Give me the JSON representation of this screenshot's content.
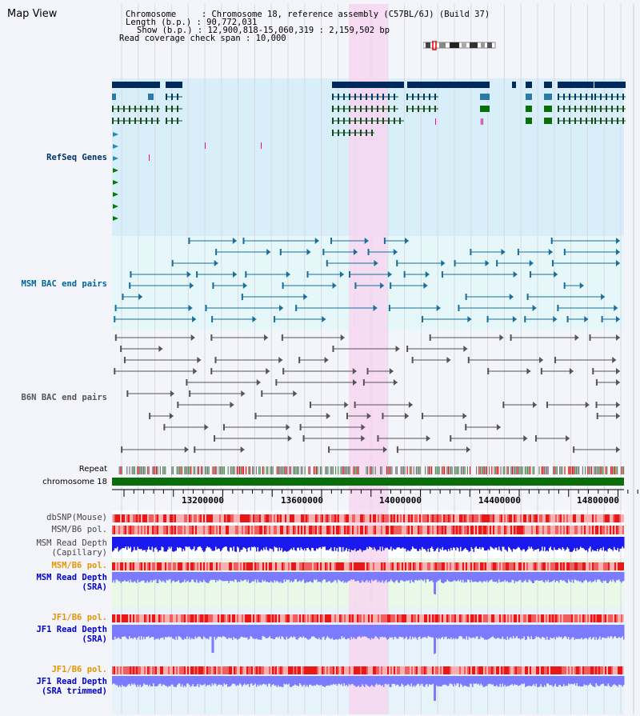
{
  "header": {
    "title": "Map View",
    "info_lines": [
      "Chromosome     : Chromosome 18, reference assembly (C57BL/6J) (Build 37)",
      "Length (b.p.) : 90,772,031",
      "Show (b.p.) : 12,900,818-15,060,319 : 2,159,502 bp",
      "Read coverage check span : 10,000"
    ]
  },
  "tracks": {
    "refseq": {
      "label": "RefSeq Genes",
      "color": "#003366"
    },
    "msm_bac": {
      "label": "MSM BAC end pairs",
      "color": "#006699"
    },
    "b6n_bac": {
      "label": "B6N BAC end pairs",
      "color": "#555555"
    },
    "repeat": {
      "label": "Repeat"
    },
    "chromosome": {
      "label": "chromosome 18"
    },
    "dbsnp": {
      "label": "dbSNP(Mouse)"
    },
    "msm_b6_pol": {
      "label": "MSM/B6 pol."
    },
    "msm_read_depth_cap": {
      "label1": "MSM Read Depth",
      "label2": "(Capillary)"
    },
    "msm_b6_pol_sra": {
      "label": "MSM/B6 pol.",
      "color": "#e69500"
    },
    "msm_read_depth_sra": {
      "label1": "MSM Read Depth",
      "label2": "(SRA)",
      "color": "#0000cc"
    },
    "jf1_b6_pol_1": {
      "label": "JF1/B6 pol.",
      "color": "#e69500"
    },
    "jf1_read_depth_sra": {
      "label1": "JF1 Read Depth",
      "label2": "(SRA)",
      "color": "#0000cc"
    },
    "jf1_b6_pol_2": {
      "label": "JF1/B6 pol.",
      "color": "#e69500"
    },
    "jf1_read_depth_trim": {
      "label1": "JF1 Read Depth",
      "label2": "(SRA trimmed)",
      "color": "#0000cc"
    }
  },
  "axis": {
    "ticks": [
      "13200000",
      "13600000",
      "14000000",
      "14400000",
      "14800000"
    ]
  },
  "colors": {
    "highlight": "#f7d4f0",
    "refseq_bg": "#d8eef8",
    "msm_bg": "#e6f7f9",
    "b6n_bg": "#f4f4fb",
    "chromosome_bar": "#0a6e0a",
    "depth_blue": "#1a1aee",
    "depth_light": "#7b7bff"
  }
}
